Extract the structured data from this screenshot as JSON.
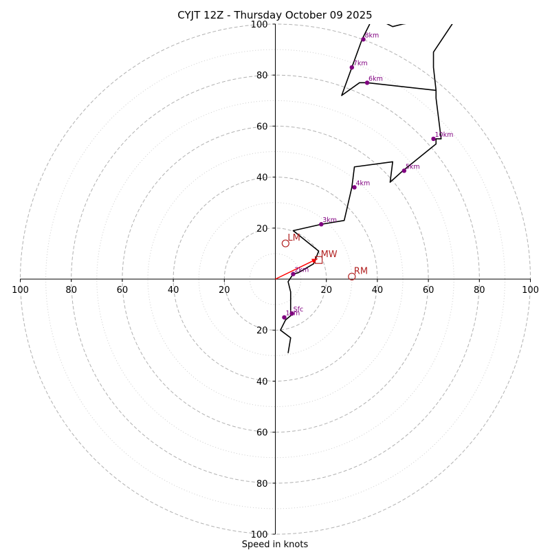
{
  "chart_data": {
    "type": "hodograph",
    "title": "CYJT 12Z - Thursday October 09 2025",
    "xlabel": "Speed in knots",
    "ylabel": "",
    "units": "knots",
    "xlim": [
      -100,
      100
    ],
    "ylim": [
      -100,
      100
    ],
    "ring_major": [
      20,
      40,
      60,
      80,
      100
    ],
    "ring_minor": [
      10,
      30,
      50,
      70,
      90
    ],
    "tick_values": [
      100,
      80,
      60,
      40,
      20
    ],
    "x_tick_labels": [
      "100",
      "80",
      "60",
      "40",
      "20",
      "20",
      "40",
      "60",
      "80",
      "100"
    ],
    "y_tick_labels_top": [
      "100",
      "80",
      "60",
      "40",
      "20"
    ],
    "y_tick_labels_bottom": [
      "20",
      "40",
      "60",
      "80",
      "100"
    ],
    "colors": {
      "trace": "#000000",
      "height_marker": "#800080",
      "storm_motion": "#b22222",
      "shear_vector": "#ff0000",
      "ring": "#b0b0b0"
    },
    "trace": [
      [
        5,
        -29
      ],
      [
        6,
        -23
      ],
      [
        2,
        -20
      ],
      [
        4,
        -16
      ],
      [
        7,
        -13.5
      ],
      [
        6,
        -13
      ],
      [
        6,
        -5
      ],
      [
        5,
        -1
      ],
      [
        7,
        2
      ],
      [
        9,
        2.5
      ],
      [
        15,
        6
      ],
      [
        17,
        11
      ],
      [
        7,
        19
      ],
      [
        18,
        21.5
      ],
      [
        27,
        23
      ],
      [
        30,
        36
      ],
      [
        31,
        44
      ],
      [
        46,
        46
      ],
      [
        45,
        38
      ],
      [
        50,
        42.5
      ],
      [
        63,
        53
      ],
      [
        63,
        55
      ],
      [
        65,
        55
      ],
      [
        63,
        71
      ],
      [
        63,
        74
      ],
      [
        36,
        77
      ],
      [
        33,
        77
      ],
      [
        26,
        72
      ],
      [
        30,
        83
      ],
      [
        34,
        94
      ],
      [
        37,
        100
      ]
    ],
    "trace_upper": [
      [
        42,
        101
      ],
      [
        46,
        99
      ],
      [
        50,
        100
      ],
      [
        56,
        101
      ]
    ],
    "trace_upper2": [
      [
        70,
        101
      ],
      [
        62,
        89
      ],
      [
        62,
        83
      ],
      [
        63,
        74
      ]
    ],
    "height_markers": [
      {
        "label": "Sfc",
        "u": 6.5,
        "v": -13.5
      },
      {
        "label": "1km",
        "u": 3.5,
        "v": -15
      },
      {
        "label": "2km",
        "u": 7,
        "v": 2
      },
      {
        "label": "3km",
        "u": 18,
        "v": 21.5
      },
      {
        "label": "4km",
        "u": 31,
        "v": 36
      },
      {
        "label": "5km",
        "u": 50.5,
        "v": 42.5
      },
      {
        "label": "10km",
        "u": 62,
        "v": 55
      },
      {
        "label": "6km",
        "u": 36,
        "v": 77
      },
      {
        "label": "7km",
        "u": 30,
        "v": 83
      },
      {
        "label": "8km",
        "u": 34.5,
        "v": 94
      }
    ],
    "storm_motion": [
      {
        "label": "LM",
        "u": 4,
        "v": 14,
        "marker": "circle"
      },
      {
        "label": "MW",
        "u": 17,
        "v": 7.5,
        "marker": "square"
      },
      {
        "label": "RM",
        "u": 30,
        "v": 1,
        "marker": "circle"
      }
    ],
    "shear_vector": {
      "from": [
        0,
        0
      ],
      "to": [
        16.5,
        8
      ]
    }
  }
}
